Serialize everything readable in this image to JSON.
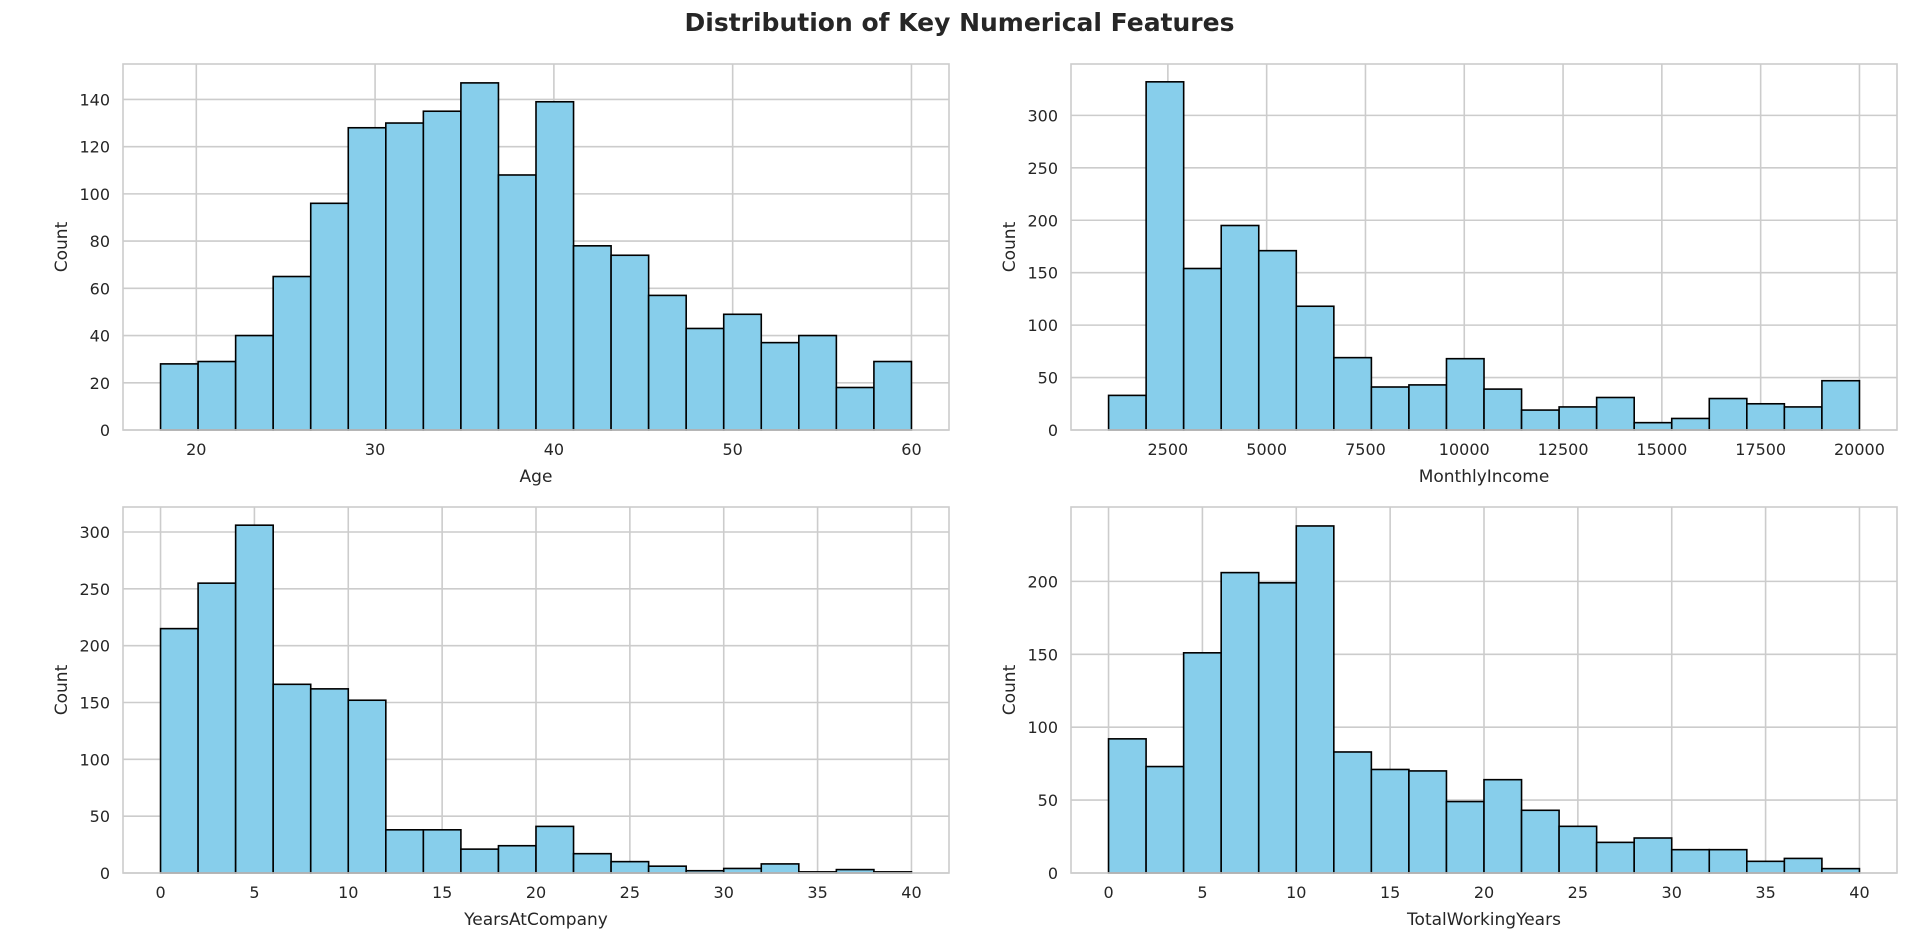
{
  "figure": {
    "title": "Distribution of Key Numerical Features"
  },
  "style": {
    "bar_fill": "#87CEEB",
    "bar_edge": "#000000",
    "grid": "#cccccc",
    "spine": "#cccccc",
    "background": "#ffffff"
  },
  "chart_data": [
    {
      "type": "bar",
      "subtype": "histogram",
      "xlabel": "Age",
      "ylabel": "Count",
      "grid": true,
      "xlim": [
        15.9,
        62.1
      ],
      "ylim": [
        0,
        155
      ],
      "xticks": [
        20,
        30,
        40,
        50,
        60
      ],
      "yticks": [
        0,
        20,
        40,
        60,
        80,
        100,
        120,
        140
      ],
      "bin_edges": [
        18,
        20.1,
        22.2,
        24.3,
        26.4,
        28.5,
        30.6,
        32.7,
        34.8,
        36.9,
        39,
        41.1,
        43.2,
        45.3,
        47.4,
        49.5,
        51.6,
        53.7,
        55.8,
        57.9,
        60
      ],
      "values": [
        28,
        29,
        40,
        65,
        96,
        128,
        130,
        135,
        147,
        108,
        139,
        78,
        74,
        57,
        43,
        49,
        37,
        40,
        18,
        29
      ]
    },
    {
      "type": "bar",
      "subtype": "histogram",
      "xlabel": "MonthlyIncome",
      "ylabel": "Count",
      "grid": true,
      "xlim": [
        49,
        20950
      ],
      "ylim": [
        0,
        349
      ],
      "xticks": [
        2500,
        5000,
        7500,
        10000,
        12500,
        15000,
        17500,
        20000
      ],
      "yticks": [
        0,
        50,
        100,
        150,
        200,
        250,
        300
      ],
      "bin_edges": [
        1000,
        1950,
        2900,
        3850,
        4800,
        5750,
        6700,
        7650,
        8600,
        9550,
        10500,
        11450,
        12400,
        13350,
        14300,
        15250,
        16200,
        17150,
        18100,
        19050,
        20000
      ],
      "values": [
        33,
        332,
        154,
        195,
        171,
        118,
        69,
        41,
        43,
        68,
        39,
        19,
        22,
        31,
        7,
        11,
        30,
        25,
        22,
        47
      ]
    },
    {
      "type": "bar",
      "subtype": "histogram",
      "xlabel": "YearsAtCompany",
      "ylabel": "Count",
      "grid": true,
      "xlim": [
        -2,
        42
      ],
      "ylim": [
        0,
        322
      ],
      "xticks": [
        0,
        5,
        10,
        15,
        20,
        25,
        30,
        35,
        40
      ],
      "yticks": [
        0,
        50,
        100,
        150,
        200,
        250,
        300
      ],
      "bin_edges": [
        0,
        2,
        4,
        6,
        8,
        10,
        12,
        14,
        16,
        18,
        20,
        22,
        24,
        26,
        28,
        30,
        32,
        34,
        36,
        38,
        40
      ],
      "values": [
        215,
        255,
        306,
        166,
        162,
        152,
        38,
        38,
        21,
        24,
        41,
        17,
        10,
        6,
        2,
        4,
        8,
        1,
        3,
        1
      ]
    },
    {
      "type": "bar",
      "subtype": "histogram",
      "xlabel": "TotalWorkingYears",
      "ylabel": "Count",
      "grid": true,
      "xlim": [
        -2,
        42
      ],
      "ylim": [
        0,
        251
      ],
      "xticks": [
        0,
        5,
        10,
        15,
        20,
        25,
        30,
        35,
        40
      ],
      "yticks": [
        0,
        50,
        100,
        150,
        200
      ],
      "bin_edges": [
        0,
        2,
        4,
        6,
        8,
        10,
        12,
        14,
        16,
        18,
        20,
        22,
        24,
        26,
        28,
        30,
        32,
        34,
        36,
        38,
        40
      ],
      "values": [
        92,
        73,
        151,
        206,
        199,
        238,
        83,
        71,
        70,
        49,
        64,
        43,
        32,
        21,
        24,
        16,
        16,
        8,
        10,
        3
      ]
    }
  ]
}
